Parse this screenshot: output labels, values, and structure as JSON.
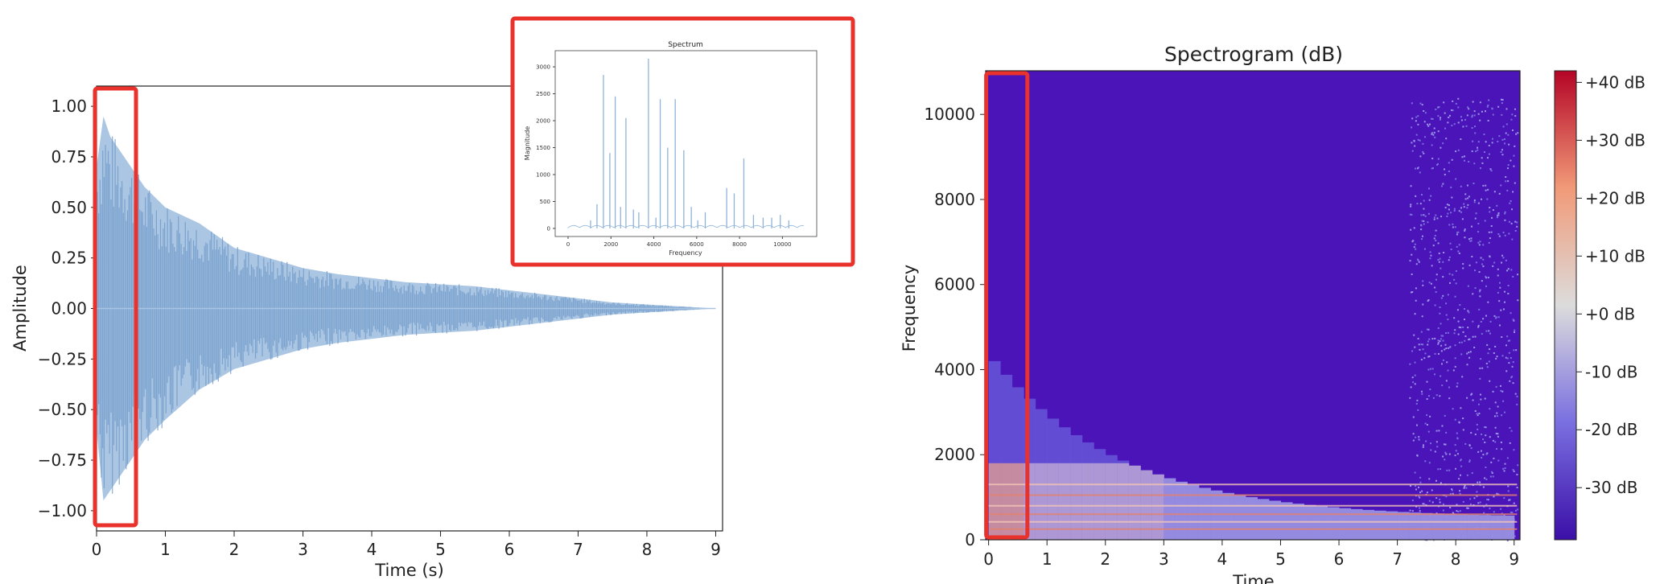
{
  "colors": {
    "wave": "#8fb3d9",
    "highlight": "#e8322b",
    "spec_bg": "#4a14b8",
    "cmap_low": "#3b0fa8",
    "cmap_mid": "#dcdcdc",
    "cmap_high": "#b40426"
  },
  "chart_data": [
    {
      "type": "line",
      "name_key": "waveform",
      "title": "",
      "xlabel": "Time (s)",
      "ylabel": "Amplitude",
      "xlim": [
        0,
        9.1
      ],
      "ylim": [
        -1.1,
        1.1
      ],
      "xticks": [
        0,
        1,
        2,
        3,
        4,
        5,
        6,
        7,
        8,
        9
      ],
      "yticks": [
        1.0,
        0.75,
        0.5,
        0.25,
        0.0,
        -0.25,
        -0.5,
        -0.75,
        -1.0
      ],
      "ytick_labels": [
        "1.00",
        "0.75",
        "0.50",
        "0.25",
        "0.00",
        "−0.25",
        "−0.50",
        "−0.75",
        "−1.00"
      ],
      "envelope": {
        "x": [
          0,
          0.1,
          0.2,
          0.3,
          0.5,
          0.7,
          1.0,
          1.5,
          2.0,
          2.5,
          3.0,
          3.5,
          4.0,
          4.5,
          5.0,
          5.5,
          6.0,
          6.5,
          7.0,
          7.5,
          8.0,
          8.5,
          9.0
        ],
        "upper": [
          0.7,
          0.95,
          0.85,
          0.8,
          0.7,
          0.6,
          0.5,
          0.42,
          0.3,
          0.25,
          0.2,
          0.17,
          0.15,
          0.13,
          0.12,
          0.11,
          0.09,
          0.07,
          0.05,
          0.03,
          0.02,
          0.01,
          0.0
        ],
        "lower": [
          -0.6,
          -0.95,
          -0.9,
          -0.85,
          -0.75,
          -0.65,
          -0.55,
          -0.4,
          -0.3,
          -0.25,
          -0.2,
          -0.17,
          -0.15,
          -0.13,
          -0.12,
          -0.11,
          -0.09,
          -0.07,
          -0.05,
          -0.03,
          -0.02,
          -0.01,
          0.0
        ]
      },
      "highlight_x": [
        0,
        0.55
      ]
    },
    {
      "type": "line",
      "name_key": "spectrum_inset",
      "title": "Spectrum",
      "xlabel": "Frequency",
      "ylabel": "Magnitude",
      "xlim": [
        -600,
        11600
      ],
      "ylim": [
        -150,
        3300
      ],
      "xticks": [
        0,
        2000,
        4000,
        6000,
        8000,
        10000
      ],
      "yticks": [
        0,
        500,
        1000,
        1500,
        2000,
        2500,
        3000
      ],
      "peaks": {
        "x": [
          1050,
          1350,
          1650,
          1950,
          2200,
          2450,
          2700,
          3050,
          3300,
          3750,
          4100,
          4300,
          4650,
          5000,
          5400,
          5750,
          6050,
          6400,
          7400,
          7750,
          8200,
          8650,
          9100,
          9500,
          9900,
          10300
        ],
        "y": [
          150,
          450,
          2850,
          1400,
          2450,
          400,
          2050,
          350,
          300,
          3150,
          200,
          2400,
          1500,
          2400,
          1450,
          400,
          150,
          300,
          750,
          650,
          1300,
          250,
          200,
          200,
          250,
          150
        ]
      }
    },
    {
      "type": "heatmap",
      "name_key": "spectrogram",
      "title": "Spectrogram (dB)",
      "xlabel": "Time",
      "ylabel": "Frequency",
      "xlim": [
        -0.05,
        9.1
      ],
      "ylim": [
        0,
        11025
      ],
      "xticks": [
        0,
        1,
        2,
        3,
        4,
        5,
        6,
        7,
        8,
        9
      ],
      "yticks": [
        0,
        2000,
        4000,
        6000,
        8000,
        10000
      ],
      "colorbar_ticks": [
        "+40 dB",
        "+30 dB",
        "+20 dB",
        "+10 dB",
        "+0 dB",
        "-10 dB",
        "-20 dB",
        "-30 dB"
      ],
      "colorbar_range": [
        -39,
        42
      ],
      "highlight_x": [
        0,
        0.65
      ]
    }
  ]
}
